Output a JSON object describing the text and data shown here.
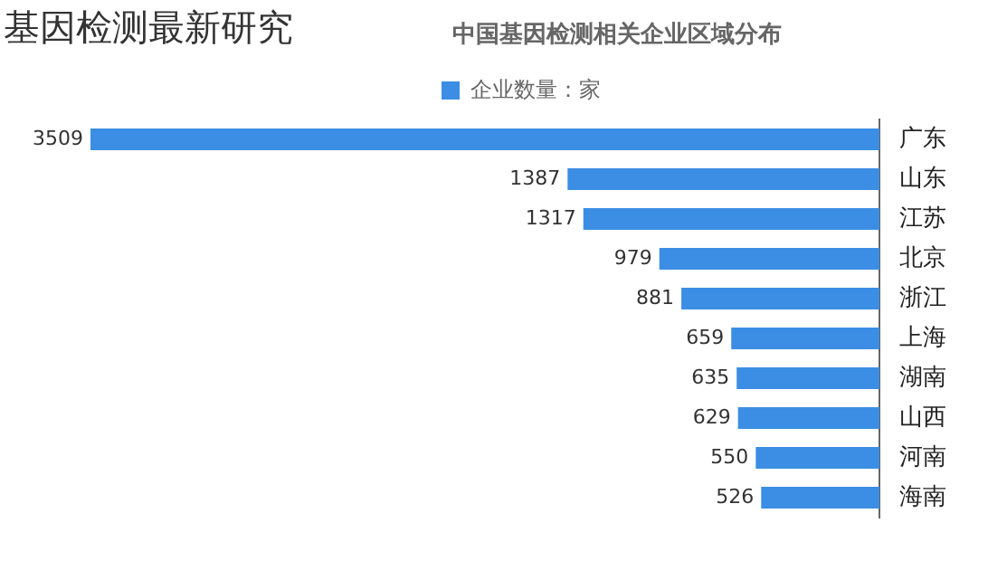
{
  "chart_data": {
    "type": "bar",
    "orientation": "horizontal",
    "title": "基因检测最新研究",
    "subtitle": "中国基因检测相关企业区域分布",
    "categories": [
      "广东",
      "山东",
      "江苏",
      "北京",
      "浙江",
      "上海",
      "湖南",
      "山西",
      "河南",
      "海南"
    ],
    "series": [
      {
        "name": "企业数量：家",
        "color": "#3b8ee3",
        "values": [
          3509,
          1387,
          1317,
          979,
          881,
          659,
          635,
          629,
          550,
          526
        ]
      }
    ],
    "data_labels": true,
    "legend": "top",
    "tick_labels": "y"
  }
}
